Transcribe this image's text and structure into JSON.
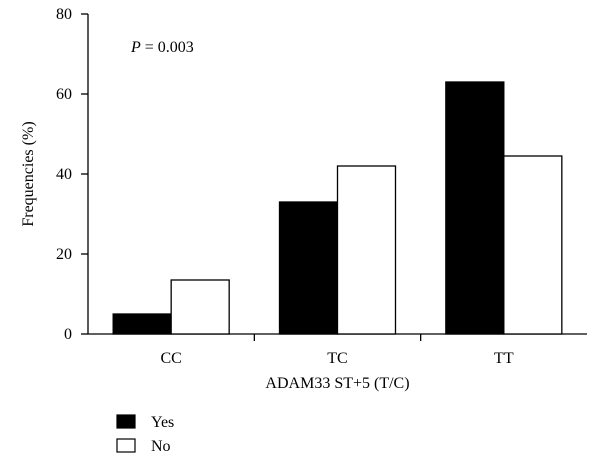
{
  "chart_data": {
    "type": "bar",
    "categories": [
      "CC",
      "TC",
      "TT"
    ],
    "series": [
      {
        "name": "Yes",
        "values": [
          5,
          33,
          63
        ],
        "fill": "#000000"
      },
      {
        "name": "No",
        "values": [
          13.5,
          42,
          44.5
        ],
        "fill": "#ffffff"
      }
    ],
    "title": "",
    "xlabel": "ADAM33 ST+5 (T/C)",
    "ylabel": "Frequencies (%)",
    "ylim": [
      0,
      80
    ],
    "yticks": [
      0,
      20,
      40,
      60,
      80
    ],
    "grid": false,
    "legend": "bottom-left",
    "annotation": {
      "italic": "P",
      "text": " = 0.003"
    }
  }
}
